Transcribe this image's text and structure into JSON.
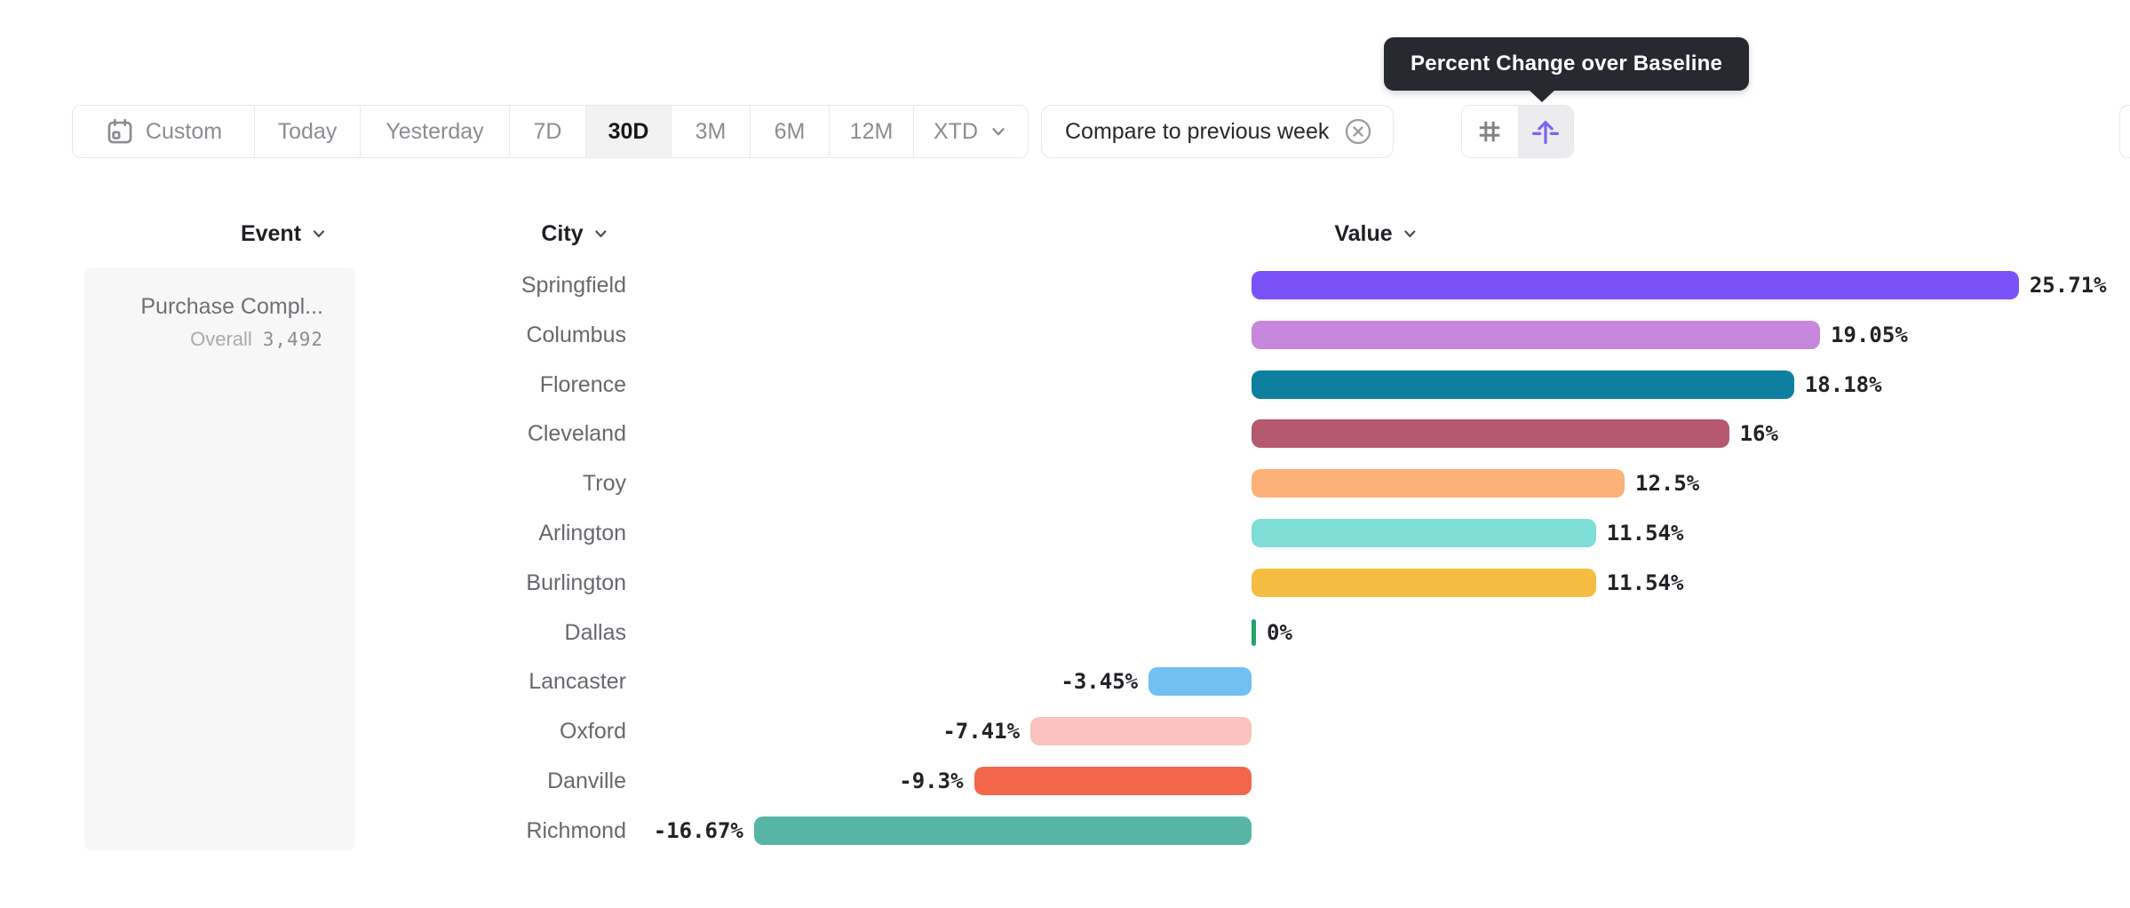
{
  "tooltip": {
    "text": "Percent Change over Baseline"
  },
  "toolbar": {
    "date_ranges": [
      {
        "label": "Custom",
        "icon": "calendar",
        "selected": false
      },
      {
        "label": "Today",
        "selected": false
      },
      {
        "label": "Yesterday",
        "selected": false
      },
      {
        "label": "7D",
        "selected": false
      },
      {
        "label": "30D",
        "selected": true
      },
      {
        "label": "3M",
        "selected": false
      },
      {
        "label": "6M",
        "selected": false
      },
      {
        "label": "12M",
        "selected": false
      },
      {
        "label": "XTD",
        "chevron": true,
        "selected": false
      }
    ],
    "compare_chip": {
      "label": "Compare to previous week"
    },
    "view_toggle": {
      "buttons": [
        {
          "name": "absolute-values",
          "icon": "hash-icon",
          "active": false
        },
        {
          "name": "percent-change",
          "icon": "arrow-up-baseline-icon",
          "active": true
        }
      ]
    }
  },
  "chart_data": {
    "type": "bar",
    "orientation": "horizontal",
    "title": "Percent Change over Baseline",
    "columns": [
      "Event",
      "City",
      "Value"
    ],
    "event": {
      "name": "Purchase Compl...",
      "segment": "Overall",
      "count": "3,492"
    },
    "unit": "%",
    "baseline": 0,
    "xlim": [
      -16.67,
      25.71
    ],
    "categories": [
      "Springfield",
      "Columbus",
      "Florence",
      "Cleveland",
      "Troy",
      "Arlington",
      "Burlington",
      "Dallas",
      "Lancaster",
      "Oxford",
      "Danville",
      "Richmond"
    ],
    "values": [
      25.71,
      19.05,
      18.18,
      16,
      12.5,
      11.54,
      11.54,
      0,
      -3.45,
      -7.41,
      -9.3,
      -16.67
    ],
    "rows": [
      {
        "city": "Springfield",
        "value": 25.71,
        "label": "25.71%",
        "color": "#7a52f8"
      },
      {
        "city": "Columbus",
        "value": 19.05,
        "label": "19.05%",
        "color": "#c787dc"
      },
      {
        "city": "Florence",
        "value": 18.18,
        "label": "18.18%",
        "color": "#0f7f9f"
      },
      {
        "city": "Cleveland",
        "value": 16,
        "label": "16%",
        "color": "#b4596e"
      },
      {
        "city": "Troy",
        "value": 12.5,
        "label": "12.5%",
        "color": "#fdb078"
      },
      {
        "city": "Arlington",
        "value": 11.54,
        "label": "11.54%",
        "color": "#7eddd4"
      },
      {
        "city": "Burlington",
        "value": 11.54,
        "label": "11.54%",
        "color": "#f4bd3f"
      },
      {
        "city": "Dallas",
        "value": 0,
        "label": "0%",
        "color": "#27a269"
      },
      {
        "city": "Lancaster",
        "value": -3.45,
        "label": "-3.45%",
        "color": "#70c0f2"
      },
      {
        "city": "Oxford",
        "value": -7.41,
        "label": "-7.41%",
        "color": "#f9c3be"
      },
      {
        "city": "Danville",
        "value": -9.3,
        "label": "-9.3%",
        "color": "#f4664a"
      },
      {
        "city": "Richmond",
        "value": -16.67,
        "label": "-16.67%",
        "color": "#57b5a5"
      }
    ]
  }
}
